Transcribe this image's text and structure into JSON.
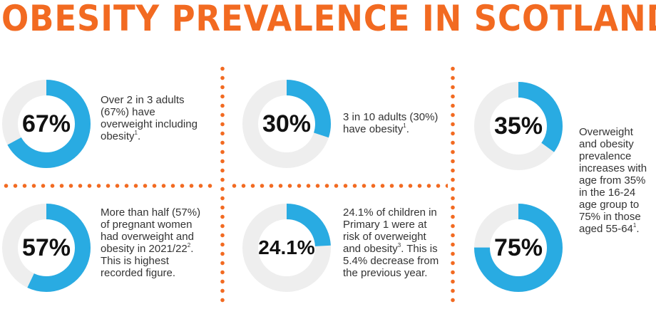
{
  "title": "OBESITY PREVALENCE IN SCOTLAND",
  "colors": {
    "title": "#f26a21",
    "accent": "#29abe2",
    "track": "#eeeeee",
    "dots": "#f26a21"
  },
  "stats": [
    {
      "percent_label": "67%",
      "value": 67,
      "text": "Over 2 in 3 adults (67%) have overweight including obesity",
      "ref": "1"
    },
    {
      "percent_label": "30%",
      "value": 30,
      "text": "3 in 10 adults (30%) have obesity",
      "ref": "1",
      "tail": "."
    },
    {
      "percent_label": "35%",
      "value": 35
    },
    {
      "percent_label": "57%",
      "value": 57,
      "text": "More than half (57%) of pregnant women had overweight and obesity in 2021/22",
      "ref": "2",
      "tail": ". This is highest recorded figure."
    },
    {
      "percent_label": "24.1%",
      "value": 24.1,
      "text": "24.1% of children in Primary 1 were at risk of overweight and obesity",
      "ref": "3",
      "tail": ". This is 5.4% decrease from the previous year."
    },
    {
      "percent_label": "75%",
      "value": 75
    }
  ],
  "age_note": {
    "text": "Overweight and obesity prevalence increases with age from 35% in the 16-24 age group to 75% in those aged 55-64",
    "ref": "1",
    "tail": "."
  }
}
